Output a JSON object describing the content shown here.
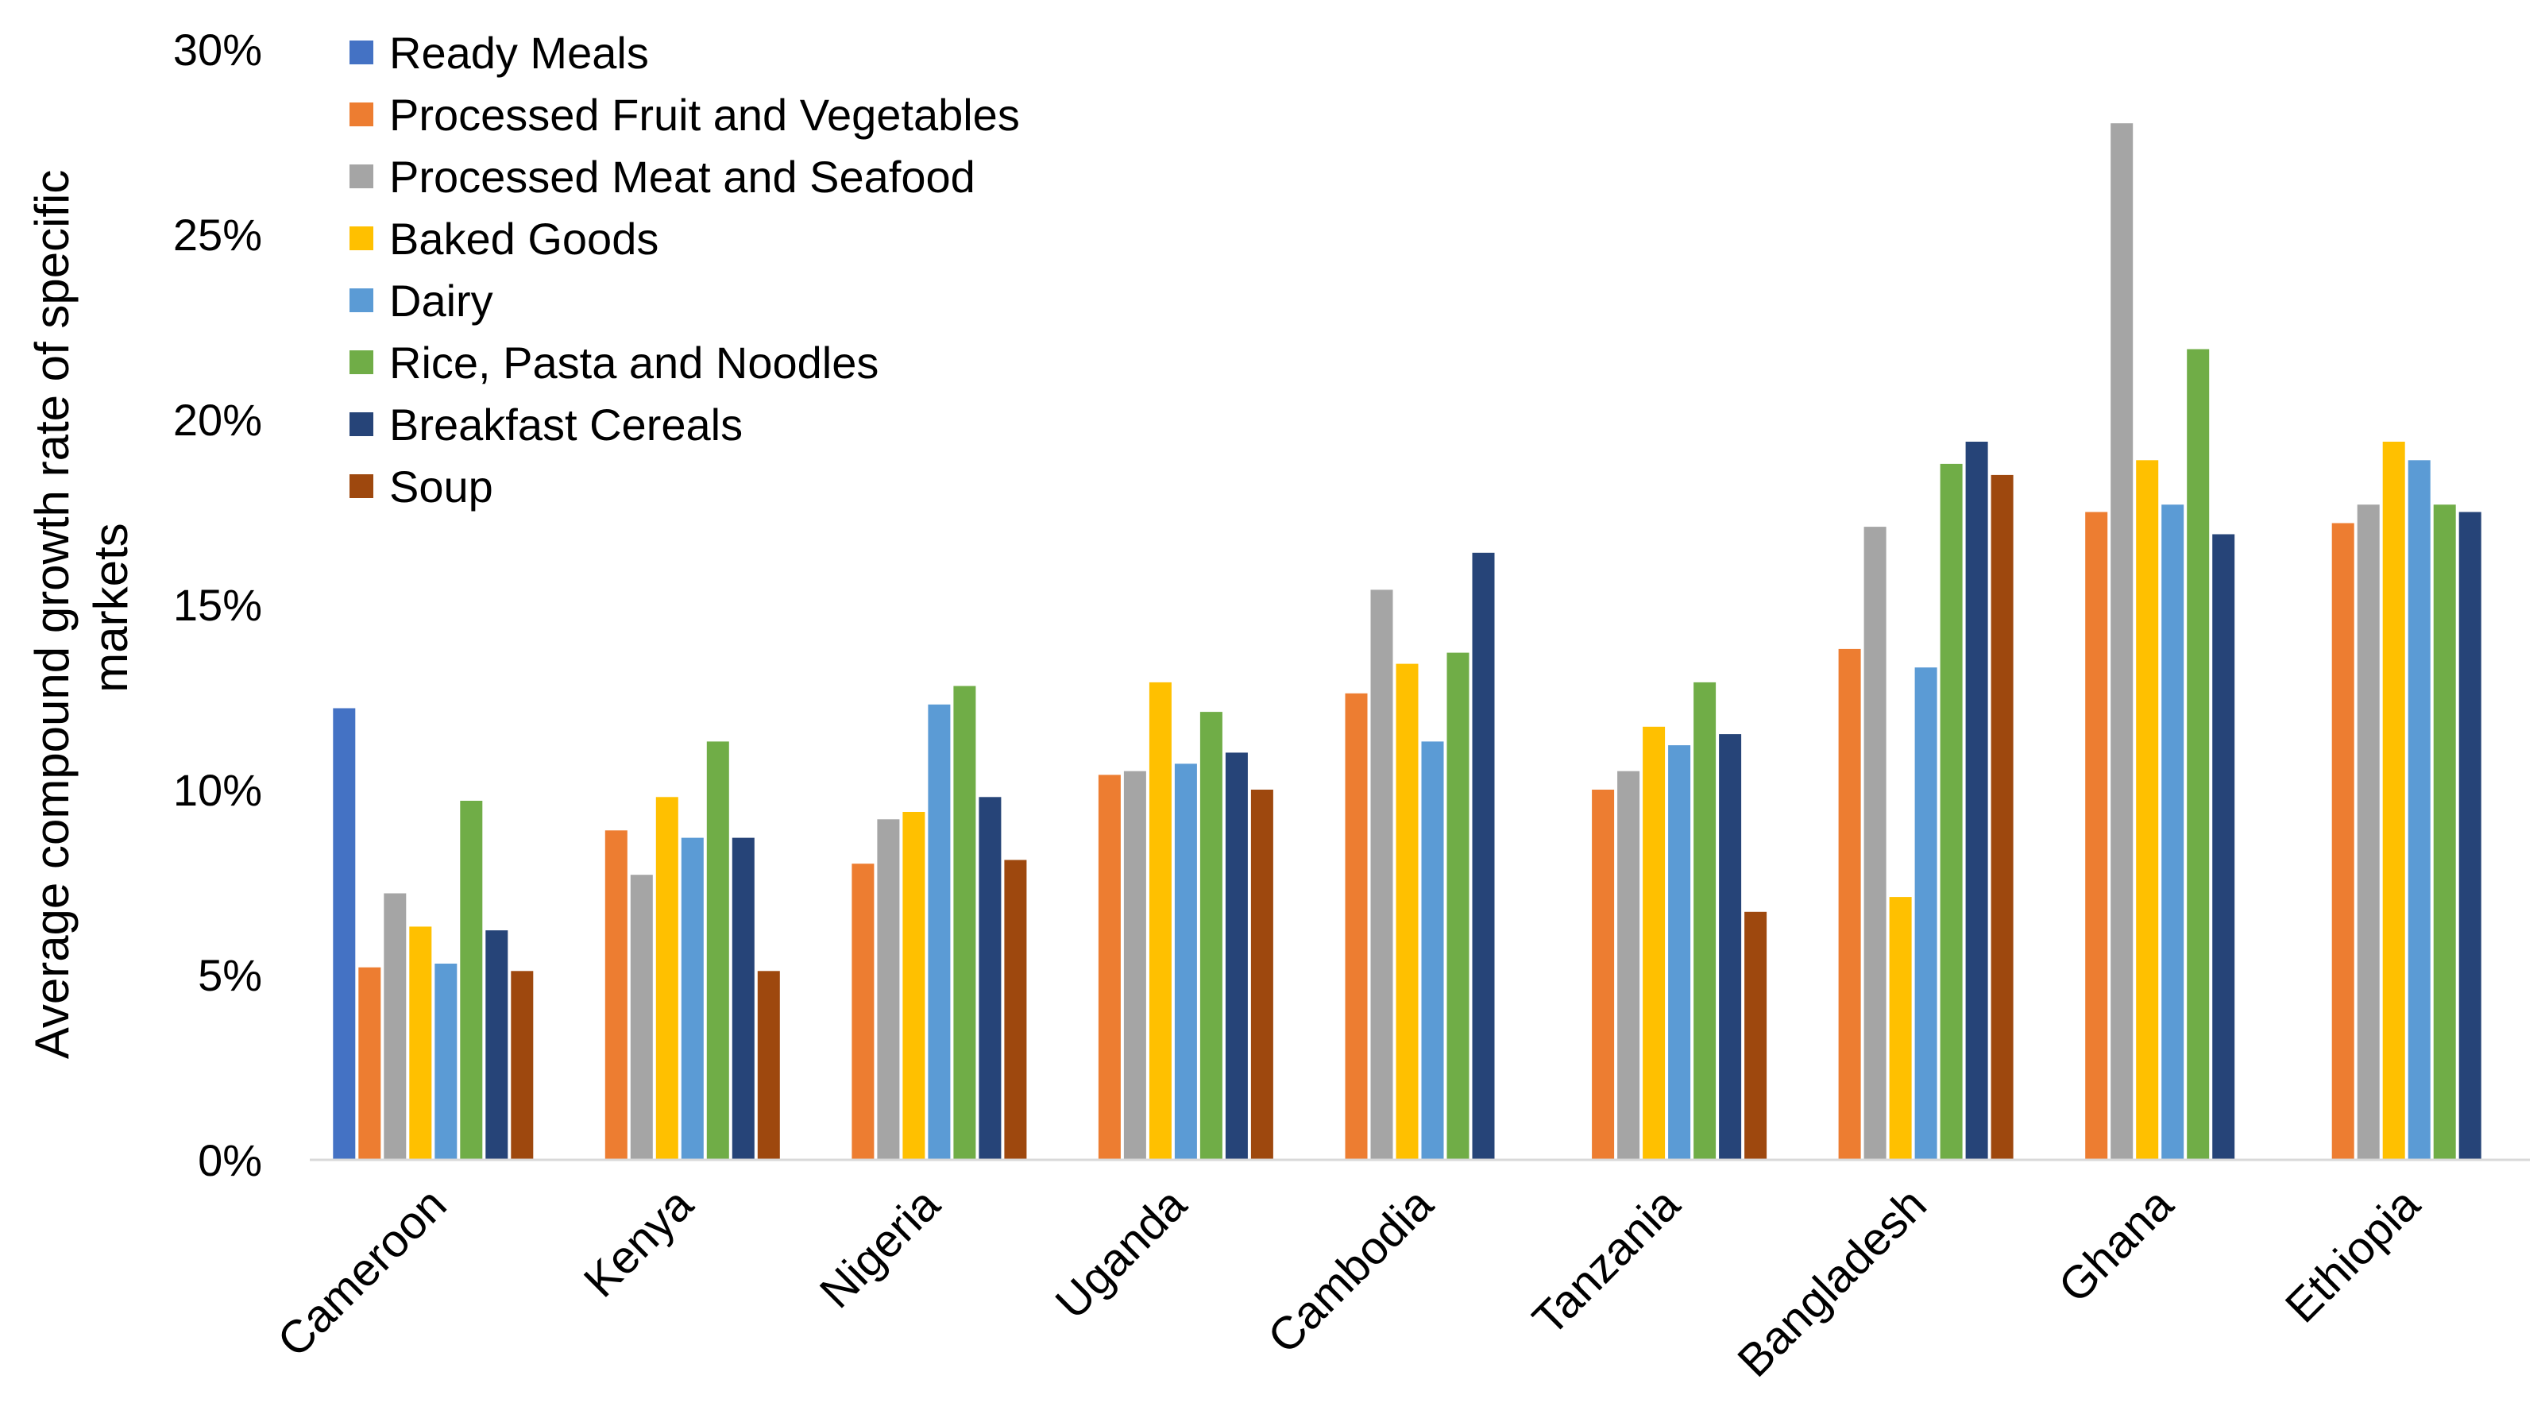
{
  "chart_data": {
    "type": "bar",
    "ylabel": "Average compound growth rate of specific markets",
    "ylabel_lines": [
      "Average compound growth rate of specific",
      "markets"
    ],
    "xlabel": "",
    "ylim": [
      0,
      30
    ],
    "yticks": [
      0,
      5,
      10,
      15,
      20,
      25,
      30
    ],
    "ytick_labels": [
      "0%",
      "5%",
      "10%",
      "15%",
      "20%",
      "25%",
      "30%"
    ],
    "grid": false,
    "legend_position": "top-left",
    "categories": [
      "Cameroon",
      "Kenya",
      "Nigeria",
      "Uganda",
      "Cambodia",
      "Tanzania",
      "Bangladesh",
      "Ghana",
      "Ethiopia"
    ],
    "series": [
      {
        "name": "Ready Meals",
        "color": "#4472C4",
        "values": [
          12.2,
          null,
          null,
          null,
          null,
          null,
          null,
          null,
          null
        ]
      },
      {
        "name": "Processed Fruit and Vegetables",
        "color": "#ED7D31",
        "values": [
          5.2,
          8.9,
          8.0,
          10.4,
          12.6,
          10.0,
          13.8,
          17.5,
          17.2
        ]
      },
      {
        "name": "Processed Meat and Seafood",
        "color": "#A5A5A5",
        "values": [
          7.2,
          7.7,
          9.2,
          10.5,
          15.4,
          10.5,
          17.1,
          28.0,
          17.7
        ]
      },
      {
        "name": "Baked Goods",
        "color": "#FFC000",
        "values": [
          6.3,
          9.8,
          9.4,
          12.9,
          13.4,
          11.7,
          7.1,
          18.9,
          19.4
        ]
      },
      {
        "name": "Dairy",
        "color": "#5B9BD5",
        "values": [
          5.3,
          8.7,
          12.3,
          10.7,
          11.3,
          11.2,
          13.3,
          17.7,
          18.9
        ]
      },
      {
        "name": "Rice, Pasta and Noodles",
        "color": "#70AD47",
        "values": [
          9.7,
          11.3,
          12.8,
          12.1,
          13.7,
          12.9,
          18.8,
          21.9,
          17.7
        ]
      },
      {
        "name": "Breakfast Cereals",
        "color": "#264478",
        "values": [
          6.2,
          8.7,
          9.8,
          11.0,
          16.4,
          11.5,
          19.4,
          16.9,
          17.5
        ]
      },
      {
        "name": "Soup",
        "color": "#9E480E",
        "values": [
          5.1,
          5.1,
          8.1,
          10.0,
          null,
          6.7,
          18.5,
          null,
          null
        ]
      }
    ]
  }
}
